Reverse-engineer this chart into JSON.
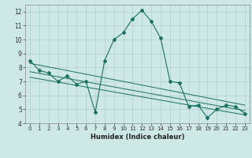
{
  "xlabel": "Humidex (Indice chaleur)",
  "xlim": [
    -0.5,
    23.5
  ],
  "ylim": [
    4,
    12.5
  ],
  "yticks": [
    4,
    5,
    6,
    7,
    8,
    9,
    10,
    11,
    12
  ],
  "xticks": [
    0,
    1,
    2,
    3,
    4,
    5,
    6,
    7,
    8,
    9,
    10,
    11,
    12,
    13,
    14,
    15,
    16,
    17,
    18,
    19,
    20,
    21,
    22,
    23
  ],
  "background_color": "#cde8e5",
  "grid_color": "#b0d0cd",
  "line_color": "#1a7060",
  "main_series": [
    8.5,
    7.8,
    7.6,
    7.0,
    7.4,
    6.8,
    7.0,
    4.8,
    8.5,
    10.0,
    10.5,
    11.5,
    12.1,
    11.3,
    10.1,
    7.0,
    6.9,
    5.2,
    5.3,
    4.4,
    5.0,
    5.3,
    5.2,
    4.7
  ],
  "reg_lines": [
    {
      "x0": 0,
      "y0": 8.3,
      "x1": 23,
      "y1": 5.3
    },
    {
      "x0": 0,
      "y0": 7.7,
      "x1": 23,
      "y1": 4.9
    },
    {
      "x0": 0,
      "y0": 7.3,
      "x1": 23,
      "y1": 4.6
    }
  ]
}
